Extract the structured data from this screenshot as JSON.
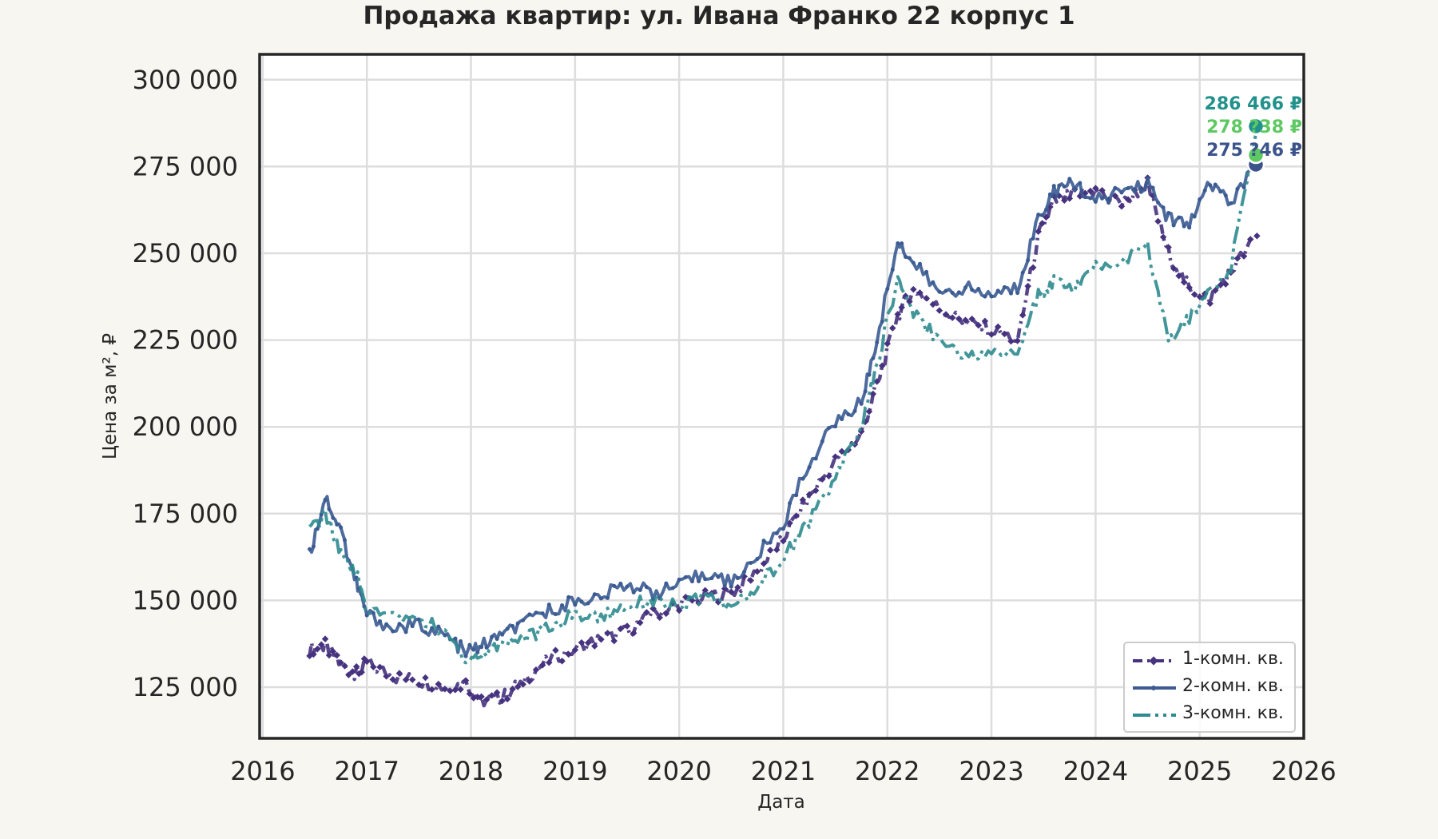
{
  "title": "Продажа квартир: ул. Ивана Франко 22 корпус 1",
  "axes": {
    "xlabel": "Дата",
    "ylabel": "Цена за м², ₽",
    "yticks": [
      "125 000",
      "150 000",
      "175 000",
      "200 000",
      "225 000",
      "250 000",
      "275 000",
      "300 000"
    ],
    "xticks": [
      "2016",
      "2017",
      "2018",
      "2019",
      "2020",
      "2021",
      "2022",
      "2023",
      "2024",
      "2025",
      "2026"
    ]
  },
  "legend": {
    "items": [
      {
        "label": "1-комн. кв.",
        "color": "#46327e"
      },
      {
        "label": "2-комн. кв.",
        "color": "#3b5b92"
      },
      {
        "label": "3-комн. кв.",
        "color": "#2e8b8f"
      }
    ]
  },
  "annotations": [
    {
      "text": "286 466 ₽",
      "color": "#21918c",
      "value": 286466
    },
    {
      "text": "278 ?38 ₽",
      "color": "#5ec962",
      "value": 278038
    },
    {
      "text": "275 ?46 ₽",
      "color": "#3b528b",
      "value": 275046
    }
  ],
  "chart_data": {
    "type": "line",
    "title": "Продажа квартир: ул. Ивана Франко 22 корпус 1",
    "xlabel": "Дата",
    "ylabel": "Цена за м², ₽",
    "xlim": [
      2015.97,
      2026.0
    ],
    "ylim": [
      110000,
      304000
    ],
    "grid": true,
    "legend_position": "lower right",
    "x": [
      2016.45,
      2016.6,
      2016.75,
      2016.9,
      2017.0,
      2017.25,
      2017.5,
      2017.75,
      2017.95,
      2018.1,
      2018.3,
      2018.5,
      2018.75,
      2019.0,
      2019.25,
      2019.5,
      2019.75,
      2020.0,
      2020.25,
      2020.5,
      2020.75,
      2021.0,
      2021.25,
      2021.5,
      2021.75,
      2021.9,
      2022.1,
      2022.25,
      2022.5,
      2022.75,
      2023.0,
      2023.25,
      2023.45,
      2023.6,
      2023.8,
      2024.0,
      2024.25,
      2024.5,
      2024.7,
      2024.9,
      2025.1,
      2025.3,
      2025.55
    ],
    "series": [
      {
        "name": "1-комн. кв.",
        "values": [
          136000,
          137000,
          131000,
          129000,
          132000,
          128000,
          127000,
          125000,
          126000,
          121000,
          122000,
          127000,
          133000,
          136000,
          139000,
          141000,
          146000,
          149000,
          151000,
          152000,
          158000,
          168000,
          180000,
          190000,
          198000,
          212000,
          232000,
          240000,
          234000,
          230000,
          228000,
          225000,
          255000,
          265000,
          267000,
          268000,
          264000,
          270000,
          250000,
          240000,
          237000,
          245000,
          255000
        ]
      },
      {
        "name": "2-комн. кв.",
        "values": [
          163000,
          180000,
          170000,
          155000,
          146000,
          142000,
          143000,
          140000,
          135000,
          137000,
          140000,
          143000,
          147000,
          150000,
          151000,
          155000,
          152000,
          154000,
          158000,
          155000,
          163000,
          172000,
          190000,
          201000,
          207000,
          225000,
          254000,
          247000,
          239000,
          240000,
          238000,
          240000,
          260000,
          268000,
          270000,
          265000,
          268000,
          270000,
          260000,
          258000,
          270000,
          265000,
          275046
        ]
      },
      {
        "name": "3-комн. кв.",
        "values": [
          170000,
          175000,
          163000,
          158000,
          147000,
          145000,
          145000,
          141000,
          133000,
          134000,
          138000,
          139000,
          142000,
          146000,
          145000,
          149000,
          150000,
          148000,
          151000,
          148000,
          154000,
          162000,
          173000,
          185000,
          200000,
          218000,
          243000,
          233000,
          225000,
          220000,
          221000,
          222000,
          238000,
          242000,
          240000,
          246000,
          248000,
          252000,
          225000,
          231000,
          240000,
          246000,
          286466
        ]
      }
    ]
  }
}
